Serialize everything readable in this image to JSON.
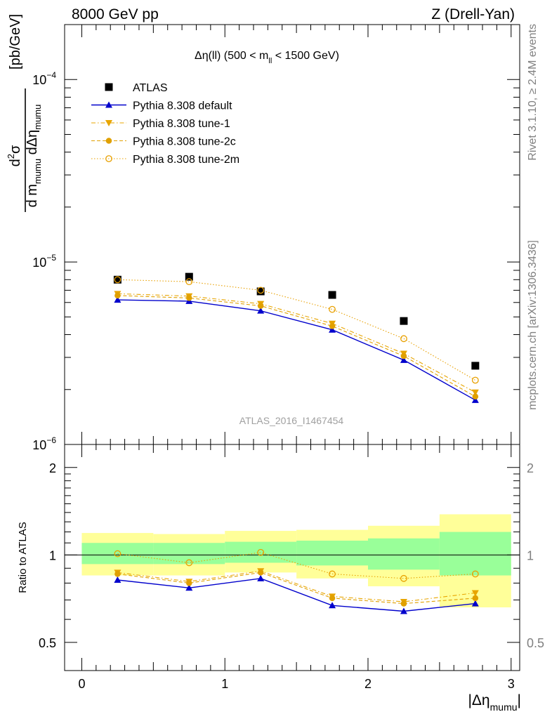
{
  "header": {
    "left": "8000 GeV pp",
    "right": "Z (Drell-Yan)"
  },
  "side_labels": {
    "rivet": "Rivet 3.1.10, ≥ 2.4M events",
    "mcplots": "mcplots.cern.ch [arXiv:1306.3436]"
  },
  "chart_data": {
    "type": "scatter",
    "title": "Δη(ll) (500 < m_ll < 1500 GeV)",
    "title_parts": {
      "main": "Δη(ll) (500 < m",
      "sub": "ll",
      "tail": " < 1500 GeV)"
    },
    "watermark": "ATLAS_2016_I1467454",
    "ylabel": "d²σ / d m_mumu dΔη_mumu [pb/GeV]",
    "ylabel_parts": {
      "num": "d",
      "num_sup": "2",
      "num_tail": "σ",
      "den1": "d m",
      "den1_sub": "mumu",
      "den2": " dΔη",
      "den2_sub": "mumu",
      "unit": "[pb/GeV]"
    },
    "xlabel": "|Δη_mumu|",
    "xlabel_parts": {
      "main": "|Δη",
      "sub": "mumu",
      "tail": "|"
    },
    "xlim": [
      -0.12,
      3.06
    ],
    "ylim": [
      1e-06,
      0.0002
    ],
    "ylog": true,
    "x_ticks": [
      "0",
      "1",
      "2",
      "3"
    ],
    "y_ticks": [
      {
        "base": "10",
        "exp": "−6",
        "value": 1e-06
      },
      {
        "base": "10",
        "exp": "−5",
        "value": 1e-05
      },
      {
        "base": "10",
        "exp": "−4",
        "value": 0.0001
      }
    ],
    "x": [
      0.25,
      0.75,
      1.25,
      1.75,
      2.25,
      2.75
    ],
    "bin_edges": [
      0.0,
      0.5,
      1.0,
      1.5,
      2.0,
      2.5,
      3.0
    ],
    "legend_position": "top-left",
    "series": [
      {
        "name": "ATLAS",
        "marker": "square",
        "color": "#000000",
        "line": "none",
        "values": [
          8e-06,
          8.3e-06,
          6.9e-06,
          6.6e-06,
          4.75e-06,
          2.7e-06
        ]
      },
      {
        "name": "Pythia 8.308 default",
        "marker": "triangle-up",
        "color": "#0000cc",
        "line": "solid",
        "values": [
          6.2e-06,
          6.1e-06,
          5.4e-06,
          4.25e-06,
          2.9e-06,
          1.75e-06
        ]
      },
      {
        "name": "Pythia 8.308 tune-1",
        "marker": "triangle-down",
        "color": "#e8a500",
        "line": "dashdot",
        "values": [
          6.7e-06,
          6.5e-06,
          5.9e-06,
          4.6e-06,
          3.15e-06,
          1.93e-06
        ]
      },
      {
        "name": "Pythia 8.308 tune-2c",
        "marker": "circle-filled",
        "color": "#e0a000",
        "line": "dashed",
        "values": [
          6.55e-06,
          6.35e-06,
          5.75e-06,
          4.45e-06,
          3.05e-06,
          1.83e-06
        ]
      },
      {
        "name": "Pythia 8.308 tune-2m",
        "marker": "circle-open",
        "color": "#e8a000",
        "line": "dotted",
        "values": [
          8e-06,
          7.8e-06,
          7e-06,
          5.5e-06,
          3.8e-06,
          2.25e-06
        ]
      }
    ],
    "ratio": {
      "ylabel": "Ratio to ATLAS",
      "ylim": [
        0.4,
        2.4
      ],
      "ylog": true,
      "y_ticks": [
        "0.5",
        "1",
        "2"
      ],
      "reference": 1.0,
      "bands": {
        "stat_color": "#99ff99",
        "total_color": "#ffff99",
        "stat": [
          [
            0.93,
            1.1
          ],
          [
            0.93,
            1.1
          ],
          [
            0.94,
            1.11
          ],
          [
            0.92,
            1.12
          ],
          [
            0.89,
            1.14
          ],
          [
            0.85,
            1.2
          ]
        ],
        "total": [
          [
            0.85,
            1.19
          ],
          [
            0.85,
            1.18
          ],
          [
            0.87,
            1.21
          ],
          [
            0.83,
            1.22
          ],
          [
            0.78,
            1.26
          ],
          [
            0.66,
            1.38
          ]
        ]
      },
      "series": [
        {
          "name": "Pythia 8.308 default",
          "values": [
            0.82,
            0.77,
            0.83,
            0.67,
            0.64,
            0.68
          ]
        },
        {
          "name": "Pythia 8.308 tune-1",
          "values": [
            0.87,
            0.81,
            0.88,
            0.72,
            0.69,
            0.74
          ]
        },
        {
          "name": "Pythia 8.308 tune-2c",
          "values": [
            0.86,
            0.8,
            0.87,
            0.71,
            0.68,
            0.71
          ]
        },
        {
          "name": "Pythia 8.308 tune-2m",
          "values": [
            1.01,
            0.94,
            1.02,
            0.86,
            0.83,
            0.86
          ]
        }
      ]
    }
  }
}
